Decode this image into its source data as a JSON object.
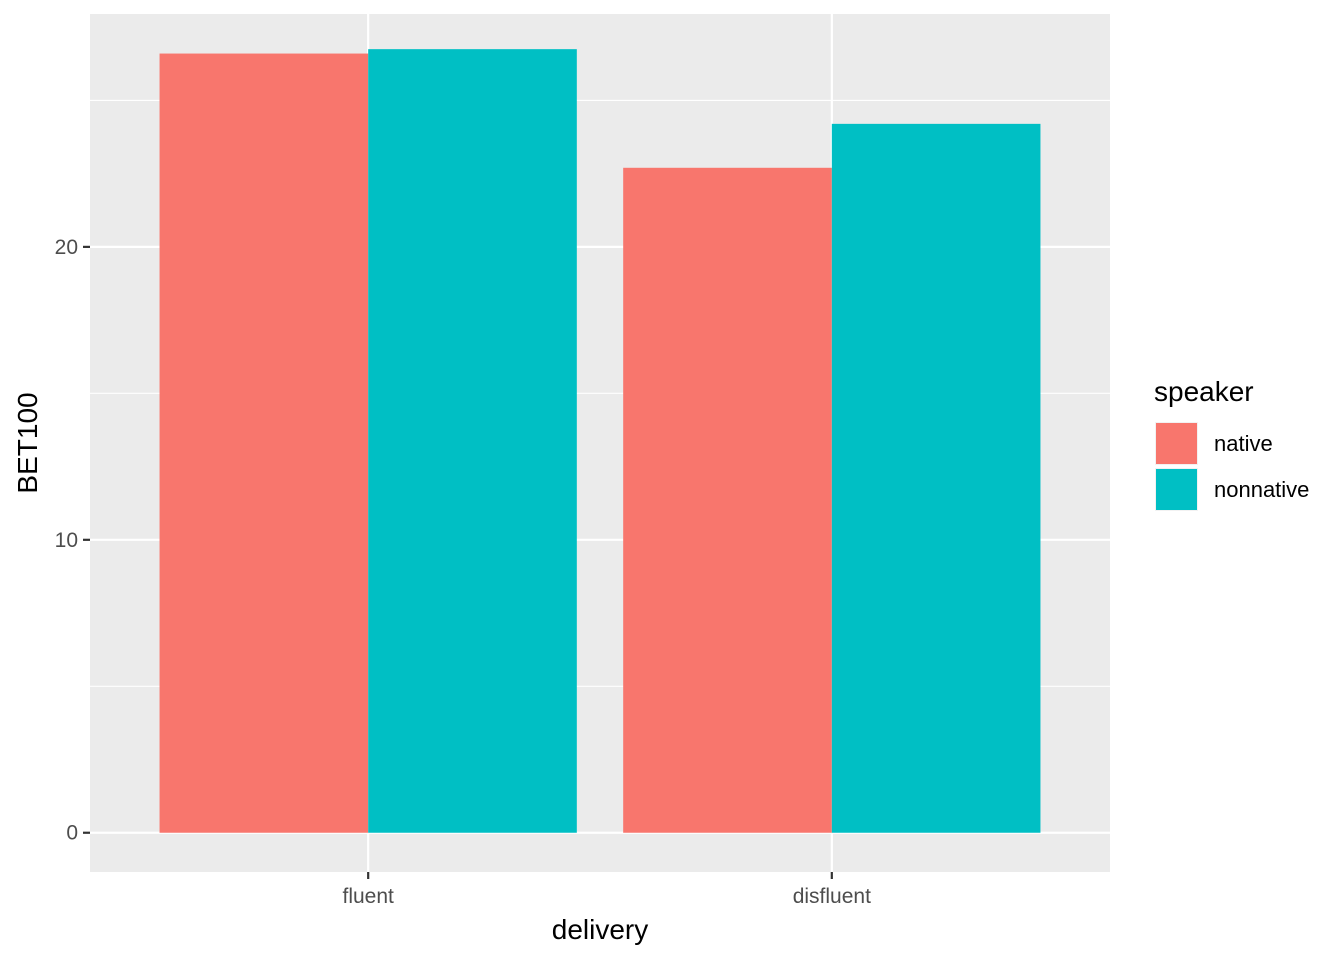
{
  "chart_data": {
    "type": "bar",
    "categories": [
      "fluent",
      "disfluent"
    ],
    "series": [
      {
        "name": "native",
        "color": "#F8766D",
        "values": [
          26.6,
          22.7
        ]
      },
      {
        "name": "nonnative",
        "color": "#00BFC4",
        "values": [
          26.75,
          24.2
        ]
      }
    ],
    "xlabel": "delivery",
    "ylabel": "BET100",
    "yticks": [
      0,
      10,
      20
    ],
    "ylim": [
      -1.34,
      27.95
    ],
    "legend": {
      "title": "speaker",
      "position": "right"
    },
    "grid": true,
    "panel_background": "#EBEBEB"
  }
}
